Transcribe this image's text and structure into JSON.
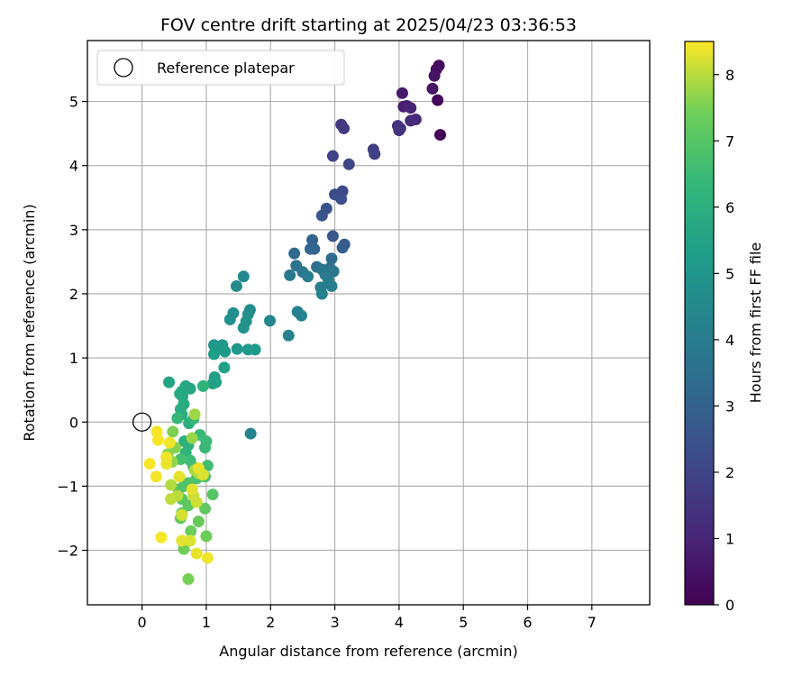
{
  "chart_data": {
    "type": "scatter",
    "title": "FOV centre drift starting at 2025/04/23 03:36:53",
    "xlabel": "Angular distance from reference (arcmin)",
    "ylabel": "Rotation from reference (arcmin)",
    "xlim": [
      -0.85,
      7.9
    ],
    "ylim": [
      -2.85,
      5.95
    ],
    "xticks": [
      0,
      1,
      2,
      3,
      4,
      5,
      6,
      7
    ],
    "yticks": [
      -2,
      -1,
      0,
      1,
      2,
      3,
      4,
      5
    ],
    "grid": true,
    "colormap": "viridis",
    "colorbar": {
      "label": "Hours from first FF file",
      "range": [
        0,
        8.5
      ],
      "ticks": [
        0,
        1,
        2,
        3,
        4,
        5,
        6,
        7,
        8
      ]
    },
    "legend": {
      "position": "top-left",
      "entries": [
        "Reference platepar"
      ]
    },
    "reference_point": {
      "x": 0,
      "y": 0,
      "label": "Reference platepar"
    },
    "points": [
      {
        "x": 4.64,
        "y": 4.48,
        "c": 0.05
      },
      {
        "x": 4.6,
        "y": 5.02,
        "c": 0.15
      },
      {
        "x": 4.62,
        "y": 5.56,
        "c": 0.25
      },
      {
        "x": 4.58,
        "y": 5.5,
        "c": 0.35
      },
      {
        "x": 4.55,
        "y": 5.4,
        "c": 0.45
      },
      {
        "x": 4.52,
        "y": 5.2,
        "c": 0.55
      },
      {
        "x": 4.05,
        "y": 5.13,
        "c": 0.65
      },
      {
        "x": 4.07,
        "y": 4.92,
        "c": 0.75
      },
      {
        "x": 4.12,
        "y": 4.93,
        "c": 0.85
      },
      {
        "x": 4.18,
        "y": 4.9,
        "c": 0.95
      },
      {
        "x": 4.26,
        "y": 4.72,
        "c": 1.05
      },
      {
        "x": 4.18,
        "y": 4.7,
        "c": 1.15
      },
      {
        "x": 4.0,
        "y": 4.55,
        "c": 1.25
      },
      {
        "x": 3.98,
        "y": 4.62,
        "c": 1.35
      },
      {
        "x": 4.02,
        "y": 4.58,
        "c": 1.45
      },
      {
        "x": 3.1,
        "y": 4.64,
        "c": 1.55
      },
      {
        "x": 3.14,
        "y": 4.58,
        "c": 1.65
      },
      {
        "x": 3.6,
        "y": 4.25,
        "c": 1.75
      },
      {
        "x": 3.62,
        "y": 4.18,
        "c": 1.85
      },
      {
        "x": 2.97,
        "y": 4.15,
        "c": 1.95
      },
      {
        "x": 3.22,
        "y": 4.02,
        "c": 2.05
      },
      {
        "x": 3.12,
        "y": 3.6,
        "c": 2.15
      },
      {
        "x": 3.0,
        "y": 3.55,
        "c": 2.25
      },
      {
        "x": 3.1,
        "y": 3.48,
        "c": 2.35
      },
      {
        "x": 2.87,
        "y": 3.33,
        "c": 2.45
      },
      {
        "x": 2.8,
        "y": 3.22,
        "c": 2.55
      },
      {
        "x": 2.97,
        "y": 2.9,
        "c": 2.65
      },
      {
        "x": 3.15,
        "y": 2.77,
        "c": 2.75
      },
      {
        "x": 3.12,
        "y": 2.72,
        "c": 2.85
      },
      {
        "x": 2.65,
        "y": 2.84,
        "c": 2.95
      },
      {
        "x": 2.68,
        "y": 2.7,
        "c": 3.05
      },
      {
        "x": 2.62,
        "y": 2.7,
        "c": 3.15
      },
      {
        "x": 2.37,
        "y": 2.63,
        "c": 3.25
      },
      {
        "x": 2.95,
        "y": 2.55,
        "c": 3.35
      },
      {
        "x": 2.72,
        "y": 2.42,
        "c": 3.45
      },
      {
        "x": 2.92,
        "y": 2.4,
        "c": 3.55
      },
      {
        "x": 2.4,
        "y": 2.44,
        "c": 3.65
      },
      {
        "x": 2.8,
        "y": 2.38,
        "c": 3.7
      },
      {
        "x": 2.98,
        "y": 2.35,
        "c": 3.75
      },
      {
        "x": 2.5,
        "y": 2.34,
        "c": 3.8
      },
      {
        "x": 2.85,
        "y": 2.3,
        "c": 3.85
      },
      {
        "x": 2.3,
        "y": 2.29,
        "c": 3.9
      },
      {
        "x": 2.58,
        "y": 2.27,
        "c": 3.95
      },
      {
        "x": 2.9,
        "y": 2.22,
        "c": 4.0
      },
      {
        "x": 2.95,
        "y": 2.12,
        "c": 4.05
      },
      {
        "x": 2.78,
        "y": 2.1,
        "c": 4.1
      },
      {
        "x": 2.8,
        "y": 2.0,
        "c": 4.15
      },
      {
        "x": 2.42,
        "y": 1.72,
        "c": 4.2
      },
      {
        "x": 2.48,
        "y": 1.66,
        "c": 4.25
      },
      {
        "x": 2.28,
        "y": 1.35,
        "c": 4.3
      },
      {
        "x": 1.69,
        "y": -0.18,
        "c": 4.35
      },
      {
        "x": 1.99,
        "y": 1.58,
        "c": 4.4
      },
      {
        "x": 1.58,
        "y": 2.27,
        "c": 4.5
      },
      {
        "x": 1.47,
        "y": 2.12,
        "c": 4.6
      },
      {
        "x": 1.68,
        "y": 1.75,
        "c": 4.65
      },
      {
        "x": 1.65,
        "y": 1.68,
        "c": 4.7
      },
      {
        "x": 1.42,
        "y": 1.7,
        "c": 4.75
      },
      {
        "x": 1.37,
        "y": 1.6,
        "c": 4.8
      },
      {
        "x": 1.62,
        "y": 1.57,
        "c": 4.85
      },
      {
        "x": 1.58,
        "y": 1.47,
        "c": 4.9
      },
      {
        "x": 1.12,
        "y": 1.2,
        "c": 4.95
      },
      {
        "x": 1.25,
        "y": 1.2,
        "c": 5.0
      },
      {
        "x": 1.18,
        "y": 1.18,
        "c": 5.05
      },
      {
        "x": 1.48,
        "y": 1.14,
        "c": 5.1
      },
      {
        "x": 1.65,
        "y": 1.13,
        "c": 5.15
      },
      {
        "x": 1.76,
        "y": 1.13,
        "c": 5.2
      },
      {
        "x": 1.29,
        "y": 1.1,
        "c": 5.25
      },
      {
        "x": 1.12,
        "y": 1.06,
        "c": 5.3
      },
      {
        "x": 1.28,
        "y": 0.85,
        "c": 5.35
      },
      {
        "x": 1.13,
        "y": 0.7,
        "c": 5.4
      },
      {
        "x": 1.15,
        "y": 0.62,
        "c": 5.45
      },
      {
        "x": 1.1,
        "y": 0.6,
        "c": 5.5
      },
      {
        "x": 0.42,
        "y": 0.62,
        "c": 5.55
      },
      {
        "x": 0.68,
        "y": 0.56,
        "c": 5.6
      },
      {
        "x": 0.75,
        "y": 0.52,
        "c": 5.65
      },
      {
        "x": 0.62,
        "y": 0.48,
        "c": 5.7
      },
      {
        "x": 0.59,
        "y": 0.44,
        "c": 5.75
      },
      {
        "x": 0.63,
        "y": 0.4,
        "c": 5.8
      },
      {
        "x": 0.65,
        "y": 0.28,
        "c": 5.85
      },
      {
        "x": 0.6,
        "y": 0.2,
        "c": 5.9
      },
      {
        "x": 0.62,
        "y": 0.12,
        "c": 5.95
      },
      {
        "x": 0.73,
        "y": -0.02,
        "c": 6.0
      },
      {
        "x": 0.66,
        "y": -0.3,
        "c": 6.05
      },
      {
        "x": 0.72,
        "y": -0.36,
        "c": 6.1
      },
      {
        "x": 0.68,
        "y": -0.48,
        "c": 6.15
      },
      {
        "x": 0.95,
        "y": 0.56,
        "c": 6.2
      },
      {
        "x": 0.8,
        "y": 0.05,
        "c": 6.3
      },
      {
        "x": 0.55,
        "y": 0.06,
        "c": 6.35
      },
      {
        "x": 0.9,
        "y": -0.2,
        "c": 6.4
      },
      {
        "x": 0.98,
        "y": -0.4,
        "c": 6.45
      },
      {
        "x": 1.0,
        "y": -0.3,
        "c": 6.5
      },
      {
        "x": 0.75,
        "y": -0.6,
        "c": 6.55
      },
      {
        "x": 1.02,
        "y": -0.68,
        "c": 6.6
      },
      {
        "x": 0.8,
        "y": -0.7,
        "c": 6.65
      },
      {
        "x": 0.6,
        "y": -0.58,
        "c": 6.7
      },
      {
        "x": 0.98,
        "y": -0.85,
        "c": 6.75
      },
      {
        "x": 0.85,
        "y": -0.88,
        "c": 6.8
      },
      {
        "x": 0.72,
        "y": -0.95,
        "c": 6.85
      },
      {
        "x": 0.65,
        "y": -1.0,
        "c": 6.9
      },
      {
        "x": 0.57,
        "y": -1.05,
        "c": 6.95
      },
      {
        "x": 1.1,
        "y": -1.13,
        "c": 7.0
      },
      {
        "x": 0.62,
        "y": -1.2,
        "c": 7.05
      },
      {
        "x": 0.72,
        "y": -1.3,
        "c": 7.1
      },
      {
        "x": 0.98,
        "y": -1.35,
        "c": 7.15
      },
      {
        "x": 0.62,
        "y": -1.42,
        "c": 7.2
      },
      {
        "x": 0.6,
        "y": -1.5,
        "c": 7.25
      },
      {
        "x": 0.88,
        "y": -1.55,
        "c": 7.3
      },
      {
        "x": 0.76,
        "y": -1.7,
        "c": 7.35
      },
      {
        "x": 1.0,
        "y": -1.78,
        "c": 7.4
      },
      {
        "x": 0.65,
        "y": -1.98,
        "c": 7.45
      },
      {
        "x": 0.72,
        "y": -2.45,
        "c": 7.5
      },
      {
        "x": 0.48,
        "y": -0.15,
        "c": 7.55
      },
      {
        "x": 0.52,
        "y": -0.4,
        "c": 7.6
      },
      {
        "x": 0.4,
        "y": -0.5,
        "c": 7.65
      },
      {
        "x": 0.47,
        "y": -0.62,
        "c": 7.7
      },
      {
        "x": 0.78,
        "y": -0.25,
        "c": 7.75
      },
      {
        "x": 0.82,
        "y": 0.12,
        "c": 7.8
      },
      {
        "x": 0.82,
        "y": -0.75,
        "c": 7.85
      },
      {
        "x": 0.88,
        "y": -0.8,
        "c": 7.9
      },
      {
        "x": 0.45,
        "y": -0.98,
        "c": 7.95
      },
      {
        "x": 0.55,
        "y": -1.15,
        "c": 8.0
      },
      {
        "x": 0.45,
        "y": -1.2,
        "c": 8.05
      },
      {
        "x": 0.8,
        "y": -1.15,
        "c": 8.1
      },
      {
        "x": 0.85,
        "y": -1.25,
        "c": 8.15
      },
      {
        "x": 0.62,
        "y": -1.45,
        "c": 8.2
      },
      {
        "x": 0.75,
        "y": -1.85,
        "c": 8.25
      },
      {
        "x": 0.62,
        "y": -1.85,
        "c": 8.3
      },
      {
        "x": 0.85,
        "y": -2.05,
        "c": 8.35
      },
      {
        "x": 1.02,
        "y": -2.12,
        "c": 8.4
      },
      {
        "x": 0.3,
        "y": -1.8,
        "c": 8.45
      },
      {
        "x": 0.22,
        "y": -0.85,
        "c": 8.45
      },
      {
        "x": 0.12,
        "y": -0.65,
        "c": 8.45
      },
      {
        "x": 0.25,
        "y": -0.28,
        "c": 8.45
      },
      {
        "x": 0.23,
        "y": -0.15,
        "c": 8.45
      },
      {
        "x": 0.43,
        "y": -0.32,
        "c": 8.4
      },
      {
        "x": 0.38,
        "y": -0.55,
        "c": 8.4
      },
      {
        "x": 0.38,
        "y": -0.65,
        "c": 8.35
      },
      {
        "x": 0.88,
        "y": -0.72,
        "c": 8.35
      },
      {
        "x": 0.58,
        "y": -0.85,
        "c": 8.3
      },
      {
        "x": 0.78,
        "y": -1.05,
        "c": 8.3
      },
      {
        "x": 0.95,
        "y": -0.82,
        "c": 8.25
      }
    ]
  }
}
